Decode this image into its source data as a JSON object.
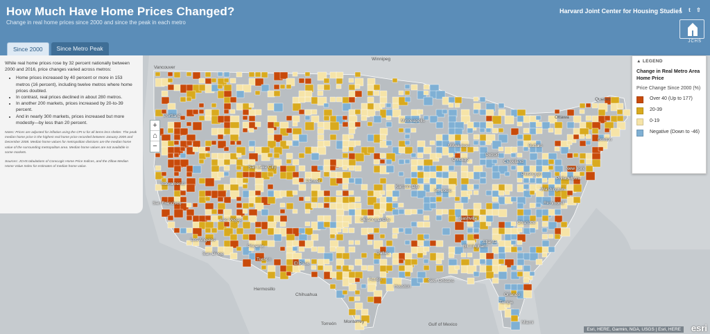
{
  "header": {
    "title": "How Much Have Home Prices Changed?",
    "subtitle": "Change in real home prices since 2000 and since the peak in each metro",
    "org": "Harvard Joint Center for Housing Studies",
    "logo_text": "JCHS",
    "tabs": [
      {
        "label": "Since 2000",
        "active": true
      },
      {
        "label": "Since Metro Peak",
        "active": false
      }
    ]
  },
  "panel": {
    "intro": "While real home prices rose by 32 percent nationally between 2000 and 2016, price changes varied across metros:",
    "bullets": [
      "Home prices increased by 40 percent or more in 153 metros (16 percent), including twelve metros where home prices doubled.",
      "In contrast, real prices declined in about 280 metros.",
      "In another 200 markets, prices increased by 20-to-39 percent.",
      "And in nearly 300 markets, prices increased but more modestly—by less than 20 percent."
    ],
    "notes": "Notes: Prices are adjusted for inflation using the CPI-U for all items less shelter. The peak median home price is the highest real home price recorded between January 2005 and December 2008. Median home values for metropolitan divisions are the median home value of the surrounding metropolitan area. Median home values are not available in some markets.",
    "sources": "Sources: JCHS tabulations of CoreLogic Home Price Indices, and the Zillow Median Home Value Index for estimates of median home value."
  },
  "legend": {
    "head": "LEGEND",
    "title": "Change in Real Metro Area Home Price",
    "subtitle": "Price Change Since 2000 (%)",
    "items": [
      {
        "label": "Over 40 (Up to 177)",
        "color": "#c84a0a"
      },
      {
        "label": "20-39",
        "color": "#d9aa1e"
      },
      {
        "label": "0-19",
        "color": "#f6e4a8"
      },
      {
        "label": "Negative (Down to -46)",
        "color": "#7fb0d4"
      }
    ]
  },
  "map": {
    "labels": [
      {
        "name": "Vancouver",
        "type": "base"
      },
      {
        "name": "Winnipeg",
        "type": "base"
      },
      {
        "name": "Quebec",
        "type": "base"
      },
      {
        "name": "Ottawa",
        "type": "base"
      },
      {
        "name": "Hermosillo",
        "type": "base"
      },
      {
        "name": "Chihuahua",
        "type": "base"
      },
      {
        "name": "Torreón",
        "type": "base"
      },
      {
        "name": "Monterrey",
        "type": "base"
      },
      {
        "name": "Gulf of Mexico",
        "type": "base"
      },
      {
        "name": "Portland",
        "type": "city"
      },
      {
        "name": "Sacramento",
        "type": "city"
      },
      {
        "name": "San Francisco",
        "type": "city"
      },
      {
        "name": "Los Angeles",
        "type": "city"
      },
      {
        "name": "San Diego",
        "type": "city"
      },
      {
        "name": "Las Vegas",
        "type": "city"
      },
      {
        "name": "Phoenix",
        "type": "city"
      },
      {
        "name": "Tucson",
        "type": "city"
      },
      {
        "name": "El Paso",
        "type": "city"
      },
      {
        "name": "Salt Lake City",
        "type": "city"
      },
      {
        "name": "Denver",
        "type": "city"
      },
      {
        "name": "Minneapolis",
        "type": "city"
      },
      {
        "name": "Milwaukee",
        "type": "city"
      },
      {
        "name": "Chicago",
        "type": "city"
      },
      {
        "name": "Detroit",
        "type": "city"
      },
      {
        "name": "Cleveland",
        "type": "city"
      },
      {
        "name": "Pittsburgh",
        "type": "city"
      },
      {
        "name": "Buffalo",
        "type": "city"
      },
      {
        "name": "Boston",
        "type": "city"
      },
      {
        "name": "New York",
        "type": "city"
      },
      {
        "name": "Philadelphia",
        "type": "city"
      },
      {
        "name": "Washington",
        "type": "city"
      },
      {
        "name": "Richmond",
        "type": "city"
      },
      {
        "name": "Kansas City",
        "type": "city"
      },
      {
        "name": "St. Louis",
        "type": "city"
      },
      {
        "name": "Nashville",
        "type": "city"
      },
      {
        "name": "Oklahoma City",
        "type": "city"
      },
      {
        "name": "Dallas",
        "type": "city"
      },
      {
        "name": "Austin",
        "type": "city"
      },
      {
        "name": "Houston",
        "type": "city"
      },
      {
        "name": "New Orleans",
        "type": "city"
      },
      {
        "name": "Birmingham",
        "type": "city"
      },
      {
        "name": "Atlanta",
        "type": "city"
      },
      {
        "name": "Charlotte",
        "type": "city"
      },
      {
        "name": "Orlando",
        "type": "city"
      },
      {
        "name": "Tampa",
        "type": "city"
      },
      {
        "name": "Miami",
        "type": "city"
      }
    ],
    "attribution": "Esri, HERE, Garmin, NGA, USGS | Esri, HERE",
    "esri": "esri"
  }
}
